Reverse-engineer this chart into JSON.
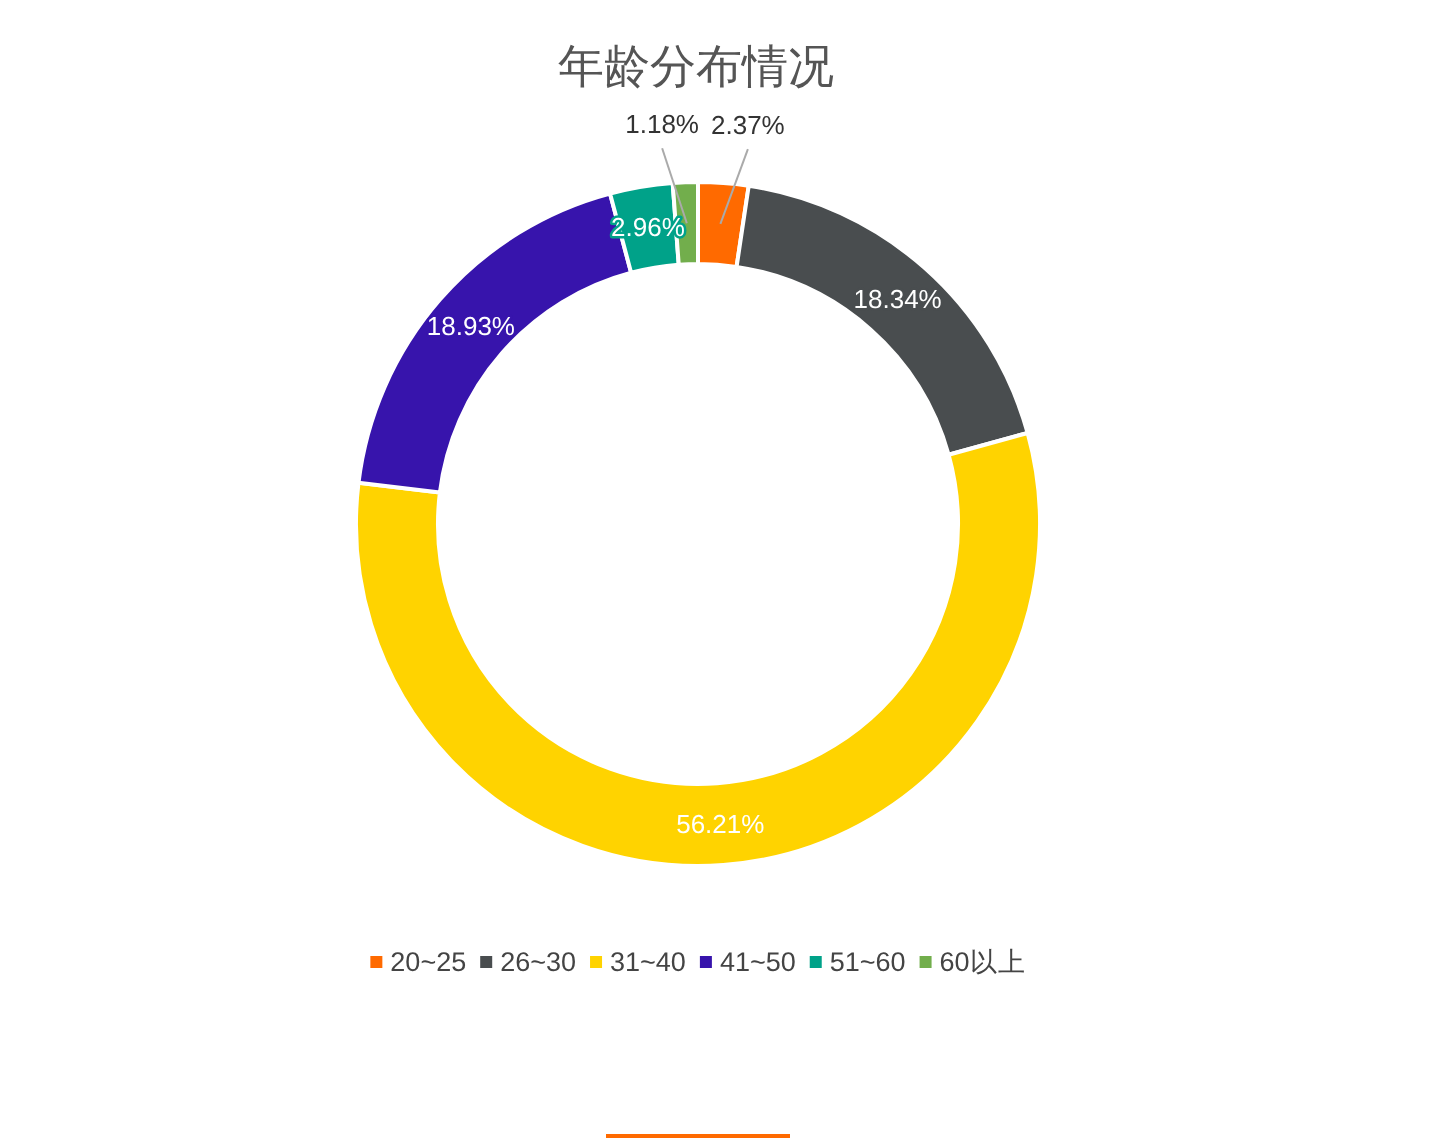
{
  "chart_data": {
    "type": "donut",
    "title": "年龄分布情况",
    "categories": [
      "20~25",
      "26~30",
      "31~40",
      "41~50",
      "51~60",
      "60以上"
    ],
    "values": [
      2.37,
      18.34,
      56.21,
      18.93,
      2.96,
      1.18
    ],
    "colors": [
      "#ff6a00",
      "#494d4f",
      "#ffd300",
      "#3714ac",
      "#00a289",
      "#72ae4c"
    ],
    "value_labels": [
      "2.37%",
      "18.34%",
      "56.21%",
      "18.93%",
      "2.96%",
      "1.18%"
    ],
    "legend": "bottom"
  }
}
